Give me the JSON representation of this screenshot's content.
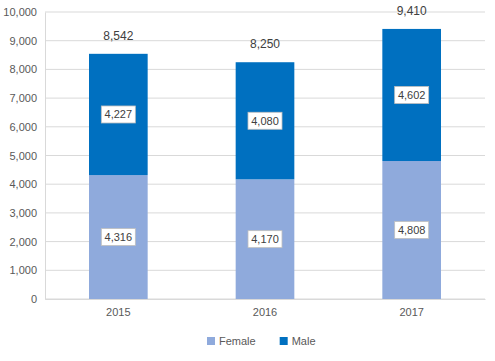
{
  "chart_data": {
    "type": "bar",
    "stacked": true,
    "data_labels": true,
    "grid": true,
    "legend": "bottom",
    "categories": [
      "2015",
      "2016",
      "2017"
    ],
    "series": [
      {
        "name": "Female",
        "color": "#8faadc",
        "values": [
          4316,
          4170,
          4808
        ],
        "value_labels": [
          "4,316",
          "4,170",
          "4,808"
        ]
      },
      {
        "name": "Male",
        "color": "#0070c0",
        "values": [
          4227,
          4080,
          4602
        ],
        "value_labels": [
          "4,227",
          "4,080",
          "4,602"
        ]
      }
    ],
    "totals": [
      8542,
      8250,
      9410
    ],
    "total_labels": [
      "8,542",
      "8,250",
      "9,410"
    ],
    "ylim": [
      0,
      10000
    ],
    "yticks": [
      0,
      {
        "value": 1000,
        "label": "1,000"
      },
      {
        "value": 2000,
        "label": "2,000"
      },
      {
        "value": 3000,
        "label": "3,000"
      },
      {
        "value": 4000,
        "label": "4,000"
      },
      {
        "value": 5000,
        "label": "5,000"
      },
      {
        "value": 6000,
        "label": "6,000"
      },
      {
        "value": 7000,
        "label": "7,000"
      },
      {
        "value": 8000,
        "label": "8,000"
      },
      {
        "value": 9000,
        "label": "9,000"
      },
      {
        "value": 10000,
        "label": "10,000"
      }
    ]
  }
}
